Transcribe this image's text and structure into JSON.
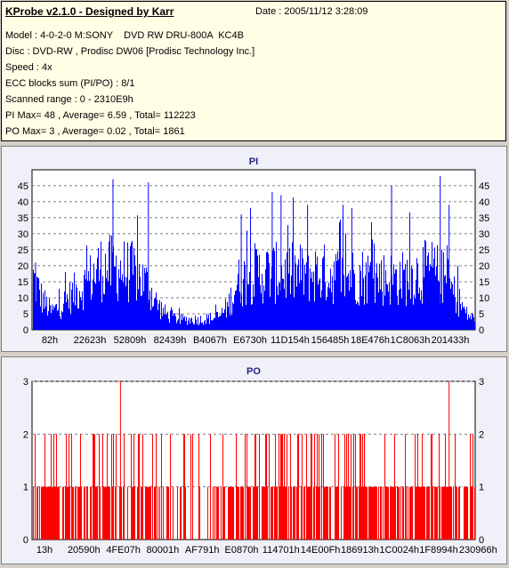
{
  "header": {
    "title": "KProbe v2.1.0 - Designed by Karr",
    "date": "Date : 2005/11/12 3:28:09",
    "lines": [
      "Model : 4-0-2-0 M:SONY    DVD RW DRU-800A  KC4B",
      "Disc : DVD-RW , Prodisc DW06 [Prodisc Technology Inc.]",
      "Speed : 4x",
      "ECC blocks sum (PI/PO) : 8/1",
      "Scanned range : 0 - 2310E9h",
      "PI Max= 48 , Average= 6.59 , Total= 112223",
      "PO Max= 3 , Average= 0.02 , Total= 1861"
    ]
  },
  "colors": {
    "pi": "#0000ff",
    "po": "#ff0000",
    "grid": "#808080",
    "panel_bg": "#f0f0f8",
    "title": "#1f1f80"
  },
  "chart_data": [
    {
      "type": "bar",
      "title": "PI",
      "ylim": [
        0,
        48
      ],
      "y_ticks": [
        0,
        5,
        10,
        15,
        20,
        25,
        30,
        35,
        40,
        45
      ],
      "x_tick_labels": [
        "82h",
        "22623h",
        "52809h",
        "82439h",
        "B4067h",
        "E6730h",
        "11D154h",
        "156485h",
        "18E476h",
        "1C8063h",
        "201433h"
      ],
      "grid": true,
      "envelope": [
        [
          0,
          20
        ],
        [
          0.02,
          12
        ],
        [
          0.04,
          7
        ],
        [
          0.06,
          9
        ],
        [
          0.09,
          14
        ],
        [
          0.12,
          18
        ],
        [
          0.15,
          24
        ],
        [
          0.19,
          24
        ],
        [
          0.23,
          22
        ],
        [
          0.26,
          17
        ],
        [
          0.28,
          10
        ],
        [
          0.3,
          6
        ],
        [
          0.33,
          4
        ],
        [
          0.38,
          4
        ],
        [
          0.42,
          5
        ],
        [
          0.44,
          9
        ],
        [
          0.46,
          18
        ],
        [
          0.5,
          22
        ],
        [
          0.55,
          22
        ],
        [
          0.6,
          22
        ],
        [
          0.65,
          22
        ],
        [
          0.7,
          21
        ],
        [
          0.75,
          21
        ],
        [
          0.8,
          20
        ],
        [
          0.84,
          20
        ],
        [
          0.87,
          22
        ],
        [
          0.9,
          23
        ],
        [
          0.93,
          20
        ],
        [
          0.96,
          12
        ],
        [
          0.98,
          6
        ],
        [
          1.0,
          4
        ]
      ],
      "spikes": [
        [
          0.005,
          21
        ],
        [
          0.18,
          47
        ],
        [
          0.26,
          46
        ],
        [
          0.47,
          36
        ],
        [
          0.54,
          43
        ],
        [
          0.56,
          42
        ],
        [
          0.62,
          39
        ],
        [
          0.7,
          39
        ],
        [
          0.72,
          38
        ],
        [
          0.81,
          45
        ],
        [
          0.92,
          48
        ],
        [
          0.94,
          39
        ]
      ]
    },
    {
      "type": "bar",
      "title": "PO",
      "ylim": [
        0,
        3
      ],
      "y_ticks": [
        0,
        1,
        2,
        3
      ],
      "x_tick_labels": [
        "13h",
        "20590h",
        "4FE07h",
        "80001h",
        "AF791h",
        "E0870h",
        "114701h",
        "14E00Fh",
        "186913h",
        "1C0024h",
        "1F8994h",
        "230966h"
      ],
      "grid": true,
      "density_1": [
        [
          0,
          0.8
        ],
        [
          0.12,
          0.8
        ],
        [
          0.16,
          0.6
        ],
        [
          0.28,
          0.6
        ],
        [
          0.31,
          0.3
        ],
        [
          0.4,
          0.3
        ],
        [
          0.43,
          0.7
        ],
        [
          0.85,
          0.7
        ],
        [
          0.9,
          0.85
        ],
        [
          1.0,
          0.6
        ]
      ],
      "density_2": [
        [
          0,
          0.15
        ],
        [
          0.3,
          0.12
        ],
        [
          0.4,
          0.05
        ],
        [
          0.44,
          0.12
        ],
        [
          0.86,
          0.2
        ],
        [
          0.93,
          0.25
        ],
        [
          1.0,
          0.1
        ]
      ],
      "spikes_3": [
        0.197,
        0.94
      ]
    }
  ]
}
